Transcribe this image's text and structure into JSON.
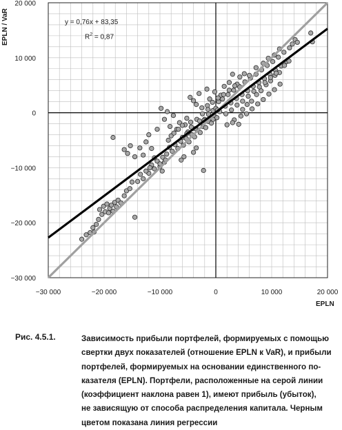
{
  "chart_data": {
    "type": "scatter",
    "xlabel": "EPLN",
    "ylabel": "EPLN / VaR",
    "xlim": [
      -30000,
      20000
    ],
    "ylim": [
      -30000,
      20000
    ],
    "x_ticks": [
      "−30 000",
      "−20 000",
      "−10 000",
      "0",
      "10 000",
      "20 000"
    ],
    "y_ticks": [
      "20 000",
      "10 000",
      "0",
      "−10 000",
      "−20 000",
      "−30 000"
    ],
    "grid": true,
    "regression": {
      "slope": 0.76,
      "intercept": 83.35,
      "color": "#000000"
    },
    "identity_line": {
      "slope": 1,
      "intercept": 0,
      "color": "#a0a0a0"
    },
    "equation_text": "y = 0,76x + 83,35",
    "r2_prefix": "R",
    "r2_sup": "2",
    "r2_suffix": " = 0,87",
    "point_color": "#a8a8a8",
    "points": [
      [
        -24000,
        -23000
      ],
      [
        -23200,
        -22200
      ],
      [
        -22500,
        -21800
      ],
      [
        -22000,
        -20900
      ],
      [
        -21800,
        -21700
      ],
      [
        -21400,
        -20300
      ],
      [
        -21000,
        -19400
      ],
      [
        -20800,
        -17600
      ],
      [
        -20400,
        -18500
      ],
      [
        -20100,
        -17000
      ],
      [
        -19800,
        -18000
      ],
      [
        -19500,
        -16600
      ],
      [
        -19200,
        -18200
      ],
      [
        -19000,
        -17400
      ],
      [
        -18700,
        -16800
      ],
      [
        -18400,
        -17900
      ],
      [
        -18100,
        -16300
      ],
      [
        -17800,
        -17100
      ],
      [
        -17500,
        -15900
      ],
      [
        -17000,
        -16400
      ],
      [
        -16400,
        -15100
      ],
      [
        -16000,
        -14200
      ],
      [
        -15400,
        -13800
      ],
      [
        -15000,
        -12600
      ],
      [
        -14500,
        -19000
      ],
      [
        -18400,
        -4500
      ],
      [
        -16400,
        -6700
      ],
      [
        -15800,
        -7400
      ],
      [
        -15300,
        -6000
      ],
      [
        -14500,
        -8000
      ],
      [
        -13600,
        -6400
      ],
      [
        -13000,
        -7700
      ],
      [
        -12500,
        -5300
      ],
      [
        -12000,
        -4000
      ],
      [
        -11500,
        -6500
      ],
      [
        -11000,
        -8200
      ],
      [
        -10500,
        -3000
      ],
      [
        -10000,
        -9800
      ],
      [
        -9600,
        -10600
      ],
      [
        -9200,
        -9000
      ],
      [
        -9800,
        800
      ],
      [
        -8700,
        200
      ],
      [
        -9200,
        -1200
      ],
      [
        -8200,
        -2500
      ],
      [
        -7600,
        -500
      ],
      [
        -7000,
        -3000
      ],
      [
        -6500,
        -1800
      ],
      [
        -6000,
        -4500
      ],
      [
        -5500,
        -2200
      ],
      [
        -5000,
        -3500
      ],
      [
        -4600,
        2800
      ],
      [
        -4000,
        2200
      ],
      [
        -3500,
        1500
      ],
      [
        -3000,
        3500
      ],
      [
        -2500,
        900
      ],
      [
        -2000,
        -1200
      ],
      [
        -1500,
        1300
      ],
      [
        -1000,
        -800
      ],
      [
        -500,
        400
      ],
      [
        0,
        800
      ],
      [
        -8800,
        -7500
      ],
      [
        -8300,
        -6300
      ],
      [
        -7800,
        -7000
      ],
      [
        -7300,
        -5800
      ],
      [
        -6800,
        -6500
      ],
      [
        -6300,
        -5200
      ],
      [
        -5800,
        -5900
      ],
      [
        -5300,
        -4700
      ],
      [
        -4800,
        -5300
      ],
      [
        -4300,
        -4000
      ],
      [
        -3800,
        -4400
      ],
      [
        -3300,
        -3100
      ],
      [
        -2800,
        -3600
      ],
      [
        -2300,
        -2500
      ],
      [
        -1800,
        -2700
      ],
      [
        -1300,
        -1600
      ],
      [
        -800,
        -1900
      ],
      [
        -300,
        -700
      ],
      [
        200,
        -900
      ],
      [
        700,
        200
      ],
      [
        -12000,
        -11000
      ],
      [
        -11500,
        -9500
      ],
      [
        -11000,
        -10200
      ],
      [
        -10500,
        -8800
      ],
      [
        -10000,
        -9300
      ],
      [
        -9500,
        -8100
      ],
      [
        -9000,
        -8600
      ],
      [
        -8500,
        -5000
      ],
      [
        -8000,
        -4200
      ],
      [
        -7500,
        -3700
      ],
      [
        -2200,
        -10500
      ],
      [
        -4000,
        -7200
      ],
      [
        -3500,
        -6400
      ],
      [
        -6200,
        -8600
      ],
      [
        -5700,
        -8000
      ],
      [
        1200,
        2500
      ],
      [
        1700,
        1200
      ],
      [
        2200,
        3300
      ],
      [
        2700,
        1800
      ],
      [
        3200,
        4100
      ],
      [
        3700,
        2600
      ],
      [
        4200,
        4800
      ],
      [
        4700,
        3300
      ],
      [
        5200,
        5600
      ],
      [
        5700,
        4000
      ],
      [
        6200,
        6300
      ],
      [
        6700,
        4800
      ],
      [
        7200,
        7000
      ],
      [
        7700,
        5500
      ],
      [
        8200,
        7800
      ],
      [
        8700,
        6200
      ],
      [
        9200,
        8600
      ],
      [
        9700,
        7000
      ],
      [
        10200,
        9300
      ],
      [
        10700,
        7700
      ],
      [
        11200,
        10100
      ],
      [
        11700,
        8500
      ],
      [
        12200,
        11000
      ],
      [
        12700,
        9300
      ],
      [
        13200,
        11800
      ],
      [
        13700,
        12500
      ],
      [
        14200,
        13300
      ],
      [
        14600,
        12800
      ],
      [
        17000,
        14500
      ],
      [
        17300,
        12900
      ],
      [
        1500,
        4800
      ],
      [
        2400,
        5500
      ],
      [
        3300,
        -1300
      ],
      [
        4100,
        -2100
      ],
      [
        4800,
        600
      ],
      [
        5600,
        1500
      ],
      [
        6400,
        2100
      ],
      [
        7300,
        3300
      ],
      [
        8100,
        4000
      ],
      [
        9000,
        5100
      ],
      [
        9800,
        5800
      ],
      [
        10600,
        6800
      ],
      [
        11400,
        7300
      ],
      [
        12300,
        8600
      ],
      [
        13100,
        9400
      ],
      [
        1800,
        -200
      ],
      [
        2800,
        500
      ],
      [
        3800,
        1400
      ],
      [
        4800,
        2100
      ],
      [
        5800,
        3000
      ],
      [
        6800,
        3900
      ],
      [
        7800,
        4700
      ],
      [
        8800,
        5500
      ],
      [
        9800,
        6400
      ],
      [
        10800,
        7200
      ],
      [
        500,
        2000
      ],
      [
        900,
        3200
      ],
      [
        -200,
        3800
      ],
      [
        -1100,
        2500
      ],
      [
        -1600,
        4300
      ],
      [
        3000,
        7000
      ],
      [
        3800,
        5200
      ],
      [
        4300,
        6500
      ],
      [
        5100,
        7100
      ],
      [
        6000,
        6800
      ],
      [
        7200,
        8200
      ],
      [
        8500,
        9000
      ],
      [
        9400,
        9900
      ],
      [
        10500,
        10500
      ],
      [
        11400,
        11600
      ],
      [
        2000,
        -2200
      ],
      [
        3000,
        -1800
      ],
      [
        4500,
        -600
      ],
      [
        5500,
        -200
      ],
      [
        6500,
        700
      ],
      [
        7500,
        1600
      ],
      [
        8500,
        2400
      ],
      [
        9500,
        3400
      ],
      [
        10500,
        4200
      ],
      [
        11500,
        5200
      ],
      [
        -5200,
        -1000
      ],
      [
        -4400,
        -2600
      ],
      [
        -3400,
        -1200
      ],
      [
        -2400,
        -200
      ],
      [
        -1400,
        600
      ],
      [
        -600,
        1900
      ],
      [
        400,
        2700
      ],
      [
        1400,
        3300
      ],
      [
        2400,
        4100
      ],
      [
        3400,
        4900
      ],
      [
        -6700,
        -3000
      ],
      [
        -6000,
        -2300
      ],
      [
        -5200,
        -3800
      ],
      [
        -4500,
        -1700
      ],
      [
        -3700,
        -2900
      ],
      [
        -2900,
        -1500
      ],
      [
        -2100,
        -1400
      ],
      [
        -1300,
        -300
      ],
      [
        -500,
        -1200
      ],
      [
        300,
        500
      ],
      [
        -14000,
        -12500
      ],
      [
        -13500,
        -11200
      ],
      [
        -13000,
        -12000
      ],
      [
        -12500,
        -10600
      ],
      [
        -11800,
        -10000
      ]
    ]
  },
  "caption": {
    "number": "Рис. 4.5.1.",
    "lines": [
      "Зависимость прибыли портфелей, формируемых с помощью",
      "свертки двух показателей (отношение EPLN к VaR), и прибыли",
      "портфелей, формируемых на основании единственного по-",
      "казателя (EPLN). Портфели, расположенные на серой линии",
      "(коэффициент наклона равен 1), имеют прибыль (убыток),",
      "не зависящую от способа распределения капитала. Черным",
      "цветом показана линия регрессии"
    ]
  }
}
